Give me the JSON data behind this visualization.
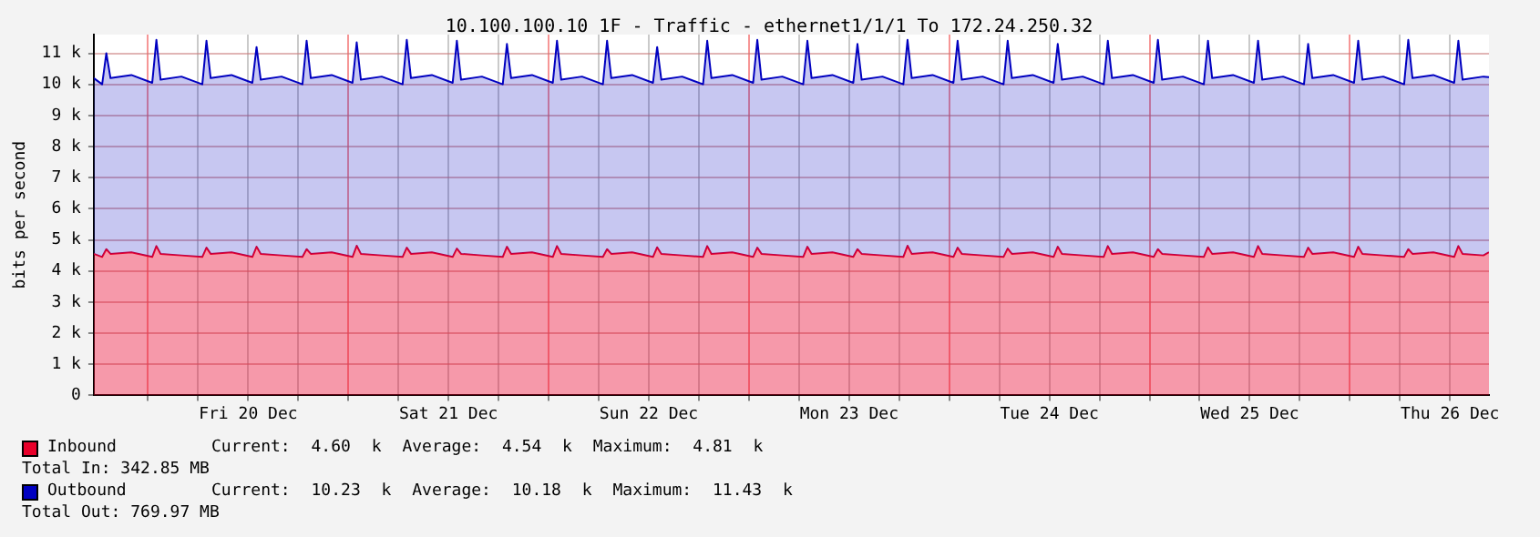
{
  "chart_data": {
    "type": "area",
    "title": "10.100.100.10 1F - Traffic - ethernet1/1/1 To 172.24.250.32",
    "ylabel": "bits per second",
    "x": [
      "--12-19T17:30",
      "--12-19T18:30",
      "--12-19T19:00",
      "--12-19T19:30",
      "--12-19T22:00",
      "--12-20T00:30",
      "--12-20T01:00",
      "--12-20T01:30",
      "--12-20T04:00",
      "--12-20T06:30",
      "--12-20T07:00",
      "--12-20T07:30",
      "--12-20T10:00",
      "--12-20T12:30",
      "--12-20T13:00",
      "--12-20T13:30",
      "--12-20T16:00",
      "--12-20T18:30",
      "--12-20T19:00",
      "--12-20T19:30",
      "--12-20T22:00",
      "--12-21T00:30",
      "--12-21T01:00",
      "--12-21T01:30",
      "--12-21T04:00",
      "--12-21T06:30",
      "--12-21T07:00",
      "--12-21T07:30",
      "--12-21T10:00",
      "--12-21T12:30",
      "--12-21T13:00",
      "--12-21T13:30",
      "--12-21T16:00",
      "--12-21T18:30",
      "--12-21T19:00",
      "--12-21T19:30",
      "--12-21T22:00",
      "--12-22T00:30",
      "--12-22T01:00",
      "--12-22T01:30",
      "--12-22T04:00",
      "--12-22T06:30",
      "--12-22T07:00",
      "--12-22T07:30",
      "--12-22T10:00",
      "--12-22T12:30",
      "--12-22T13:00",
      "--12-22T13:30",
      "--12-22T16:00",
      "--12-22T18:30",
      "--12-22T19:00",
      "--12-22T19:30",
      "--12-22T22:00",
      "--12-23T00:30",
      "--12-23T01:00",
      "--12-23T01:30",
      "--12-23T04:00",
      "--12-23T06:30",
      "--12-23T07:00",
      "--12-23T07:30",
      "--12-23T10:00",
      "--12-23T12:30",
      "--12-23T13:00",
      "--12-23T13:30",
      "--12-23T16:00",
      "--12-23T18:30",
      "--12-23T19:00",
      "--12-23T19:30",
      "--12-23T22:00",
      "--12-24T00:30",
      "--12-24T01:00",
      "--12-24T01:30",
      "--12-24T04:00",
      "--12-24T06:30",
      "--12-24T07:00",
      "--12-24T07:30",
      "--12-24T10:00",
      "--12-24T12:30",
      "--12-24T13:00",
      "--12-24T13:30",
      "--12-24T16:00",
      "--12-24T18:30",
      "--12-24T19:00",
      "--12-24T19:30",
      "--12-24T22:00",
      "--12-25T00:30",
      "--12-25T01:00",
      "--12-25T01:30",
      "--12-25T04:00",
      "--12-25T06:30",
      "--12-25T07:00",
      "--12-25T07:30",
      "--12-25T10:00",
      "--12-25T12:30",
      "--12-25T13:00",
      "--12-25T13:30",
      "--12-25T16:00",
      "--12-25T18:30",
      "--12-25T19:00",
      "--12-25T19:30",
      "--12-25T22:00",
      "--12-26T00:30",
      "--12-26T01:00",
      "--12-26T01:30",
      "--12-26T04:00",
      "--12-26T06:30",
      "--12-26T07:00",
      "--12-26T07:30",
      "--12-26T10:00",
      "--12-26T12:30",
      "--12-26T13:00",
      "--12-26T13:30",
      "--12-26T16:00",
      "--12-26T16:40"
    ],
    "series": [
      {
        "name": "Outbound",
        "color": "#0000c0",
        "values": [
          10200,
          10000,
          11000,
          10200,
          10300,
          10050,
          11430,
          10150,
          10250,
          10000,
          11400,
          10200,
          10300,
          10050,
          11200,
          10150,
          10250,
          10000,
          11400,
          10200,
          10300,
          10050,
          11350,
          10150,
          10250,
          10000,
          11430,
          10200,
          10300,
          10050,
          11400,
          10150,
          10250,
          10000,
          11300,
          10200,
          10300,
          10050,
          11400,
          10150,
          10250,
          10000,
          11400,
          10200,
          10300,
          10050,
          11200,
          10150,
          10250,
          10000,
          11400,
          10200,
          10300,
          10050,
          11430,
          10150,
          10250,
          10000,
          11400,
          10200,
          10300,
          10050,
          11300,
          10150,
          10250,
          10000,
          11430,
          10200,
          10300,
          10050,
          11400,
          10150,
          10250,
          10000,
          11400,
          10200,
          10300,
          10050,
          11300,
          10150,
          10250,
          10000,
          11400,
          10200,
          10300,
          10050,
          11430,
          10150,
          10250,
          10000,
          11400,
          10200,
          10300,
          10050,
          11400,
          10150,
          10250,
          10000,
          11300,
          10200,
          10300,
          10050,
          11400,
          10150,
          10250,
          10000,
          11430,
          10200,
          10300,
          10050,
          11400,
          10150,
          10250,
          10230
        ]
      },
      {
        "name": "Inbound",
        "color": "#e8002a",
        "values": [
          4550,
          4450,
          4700,
          4550,
          4600,
          4450,
          4800,
          4550,
          4500,
          4450,
          4750,
          4550,
          4600,
          4450,
          4780,
          4550,
          4500,
          4450,
          4700,
          4550,
          4600,
          4450,
          4810,
          4550,
          4500,
          4450,
          4750,
          4550,
          4600,
          4450,
          4720,
          4550,
          4500,
          4450,
          4780,
          4550,
          4600,
          4450,
          4800,
          4550,
          4500,
          4450,
          4700,
          4550,
          4600,
          4450,
          4760,
          4550,
          4500,
          4450,
          4800,
          4550,
          4600,
          4450,
          4750,
          4550,
          4500,
          4450,
          4780,
          4550,
          4600,
          4450,
          4700,
          4550,
          4500,
          4450,
          4810,
          4550,
          4600,
          4450,
          4750,
          4550,
          4500,
          4450,
          4720,
          4550,
          4600,
          4450,
          4780,
          4550,
          4500,
          4450,
          4800,
          4550,
          4600,
          4450,
          4700,
          4550,
          4500,
          4450,
          4760,
          4550,
          4600,
          4450,
          4800,
          4550,
          4500,
          4450,
          4750,
          4550,
          4600,
          4450,
          4780,
          4550,
          4500,
          4450,
          4700,
          4550,
          4600,
          4450,
          4800,
          4550,
          4500,
          4600
        ]
      }
    ],
    "xlim": [
      "--12-19T17:30",
      "--12-26T16:40"
    ],
    "xticks": [
      {
        "value": "--12-20T00:00",
        "label": null
      },
      {
        "value": "--12-20T06:00",
        "label": null
      },
      {
        "value": "--12-20T12:00",
        "label": "Fri 20 Dec"
      },
      {
        "value": "--12-20T18:00",
        "label": null
      },
      {
        "value": "--12-21T00:00",
        "label": null
      },
      {
        "value": "--12-21T06:00",
        "label": null
      },
      {
        "value": "--12-21T12:00",
        "label": "Sat 21 Dec"
      },
      {
        "value": "--12-21T18:00",
        "label": null
      },
      {
        "value": "--12-22T00:00",
        "label": null
      },
      {
        "value": "--12-22T06:00",
        "label": null
      },
      {
        "value": "--12-22T12:00",
        "label": "Sun 22 Dec"
      },
      {
        "value": "--12-22T18:00",
        "label": null
      },
      {
        "value": "--12-23T00:00",
        "label": null
      },
      {
        "value": "--12-23T06:00",
        "label": null
      },
      {
        "value": "--12-23T12:00",
        "label": "Mon 23 Dec"
      },
      {
        "value": "--12-23T18:00",
        "label": null
      },
      {
        "value": "--12-24T00:00",
        "label": null
      },
      {
        "value": "--12-24T06:00",
        "label": null
      },
      {
        "value": "--12-24T12:00",
        "label": "Tue 24 Dec"
      },
      {
        "value": "--12-24T18:00",
        "label": null
      },
      {
        "value": "--12-25T00:00",
        "label": null
      },
      {
        "value": "--12-25T06:00",
        "label": null
      },
      {
        "value": "--12-25T12:00",
        "label": "Wed 25 Dec"
      },
      {
        "value": "--12-25T18:00",
        "label": null
      },
      {
        "value": "--12-26T00:00",
        "label": null
      },
      {
        "value": "--12-26T06:00",
        "label": null
      },
      {
        "value": "--12-26T12:00",
        "label": "Thu 26 Dec"
      }
    ],
    "ylim": [
      0,
      11600
    ],
    "yticks": [
      {
        "value": 0,
        "label": "0"
      },
      {
        "value": 1000,
        "label": "1 k"
      },
      {
        "value": 2000,
        "label": "2 k"
      },
      {
        "value": 3000,
        "label": "3 k"
      },
      {
        "value": 4000,
        "label": "4 k"
      },
      {
        "value": 5000,
        "label": "5 k"
      },
      {
        "value": 6000,
        "label": "6 k"
      },
      {
        "value": 7000,
        "label": "7 k"
      },
      {
        "value": 8000,
        "label": "8 k"
      },
      {
        "value": 9000,
        "label": "9 k"
      },
      {
        "value": 10000,
        "label": "10 k"
      },
      {
        "value": 11000,
        "label": "11 k"
      }
    ],
    "grid": true,
    "legend": "bottom",
    "annotations": [
      "Current: 10.23 k Average: 10.18 k Maximum: 11.43 k",
      "Total Out: 769.97 MB",
      "Current: 4.60 k Average: 4.54 k Maximum: 4.81 k",
      "Total In: 342.85 MB"
    ]
  }
}
